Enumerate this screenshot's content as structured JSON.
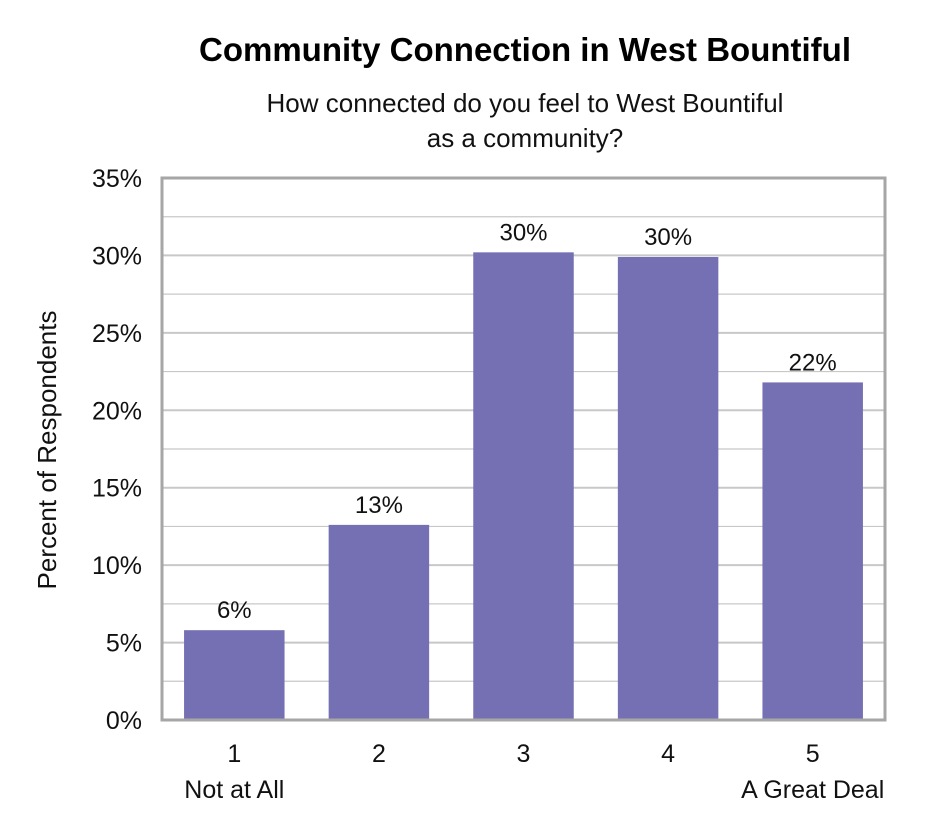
{
  "chart_data": {
    "type": "bar",
    "title": "Community Connection in West Bountiful",
    "subtitle_lines": [
      "How connected do you feel to West Bountiful",
      "as a community?"
    ],
    "ylabel": "Percent of Respondents",
    "xlabel": "",
    "categories": [
      "1",
      "2",
      "3",
      "4",
      "5"
    ],
    "category_sublabels": [
      "Not at All",
      "",
      "",
      "",
      "A Great Deal"
    ],
    "values": [
      5.8,
      12.6,
      30.2,
      29.9,
      21.8
    ],
    "data_labels": [
      "6%",
      "13%",
      "30%",
      "30%",
      "22%"
    ],
    "ylim": [
      0,
      35
    ],
    "yticks": [
      0,
      5,
      10,
      15,
      20,
      25,
      30,
      35
    ],
    "ytick_labels": [
      "0%",
      "5%",
      "10%",
      "15%",
      "20%",
      "25%",
      "30%",
      "35%"
    ],
    "grid": true,
    "bar_color": "#7570b3",
    "grid_color": "#c8c8c8",
    "frame_color": "#a6a6a6"
  }
}
